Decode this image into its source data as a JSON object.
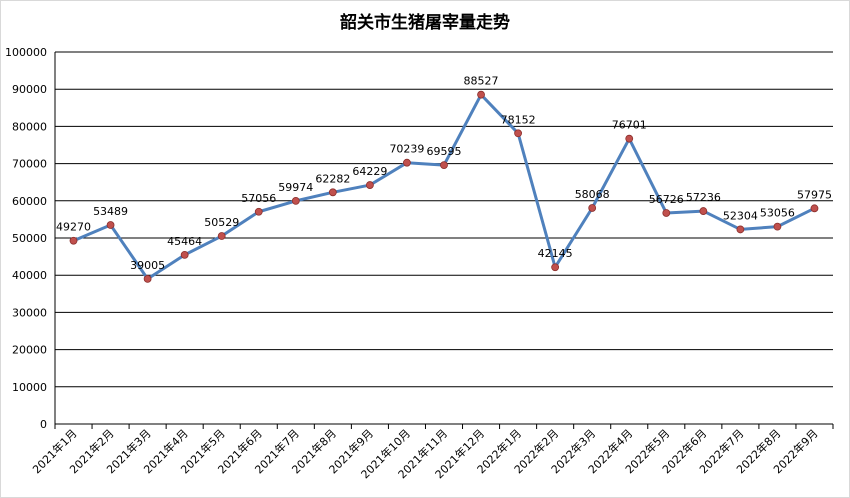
{
  "chart_data": {
    "type": "line",
    "title": "韶关市生猪屠宰量走势",
    "xlabel": "",
    "ylabel": "",
    "ylim": [
      0,
      100000
    ],
    "yticks": [
      0,
      10000,
      20000,
      30000,
      40000,
      50000,
      60000,
      70000,
      80000,
      90000,
      100000
    ],
    "grid": true,
    "legend": "none",
    "categories": [
      "2021年1月",
      "2021年2月",
      "2021年3月",
      "2021年4月",
      "2021年5月",
      "2021年6月",
      "2021年7月",
      "2021年8月",
      "2021年9月",
      "2021年10月",
      "2021年11月",
      "2021年12月",
      "2022年1月",
      "2022年2月",
      "2022年3月",
      "2022年4月",
      "2022年5月",
      "2022年6月",
      "2022年7月",
      "2022年8月",
      "2022年9月"
    ],
    "series": [
      {
        "values": [
          49270,
          53489,
          39005,
          45464,
          50529,
          57056,
          59974,
          62282,
          64229,
          70239,
          69595,
          88527,
          78152,
          42145,
          58068,
          76701,
          56726,
          57236,
          52304,
          53056,
          57975
        ]
      }
    ],
    "colors": {
      "line": "#4f81bd",
      "marker": "#c0504d",
      "grid": "#000000"
    }
  }
}
